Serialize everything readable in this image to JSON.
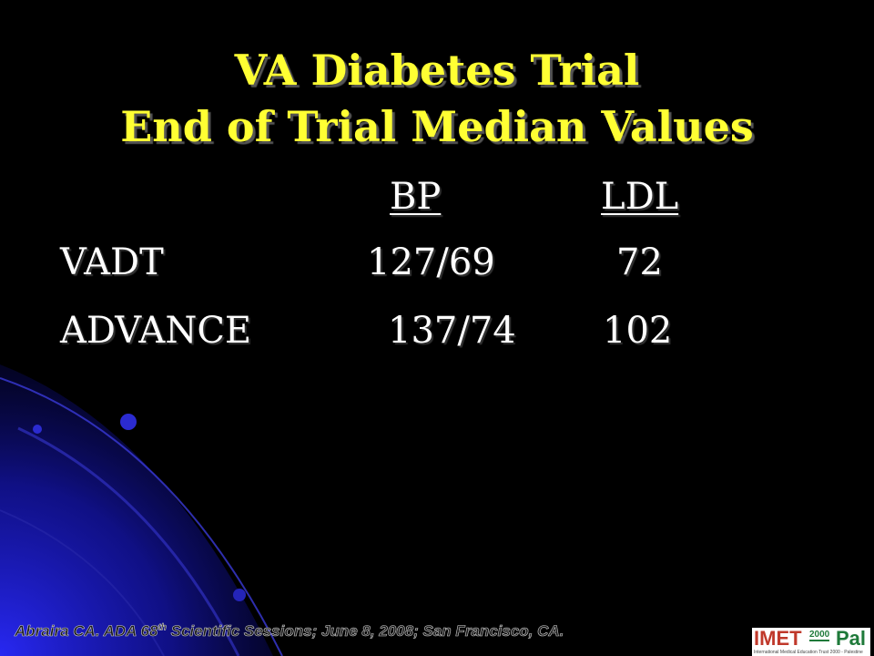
{
  "slide": {
    "title_line1": "VA Diabetes Trial",
    "title_line2": "End of Trial Median Values",
    "table": {
      "headers": [
        "BP",
        "LDL"
      ],
      "rows": [
        {
          "label": "VADT",
          "bp": "127/69",
          "ldl": "72"
        },
        {
          "label": "ADVANCE",
          "bp": "137/74",
          "ldl": "102"
        }
      ]
    },
    "footer": {
      "citation_pre": "Abraira CA. ADA 68",
      "citation_sup": "th",
      "citation_post": " Scientific Sessions; June 8, 2008; San Francisco, CA."
    },
    "logo": {
      "left": "IMET",
      "year": "2000",
      "right": "Pal",
      "tagline": "International Medical Education Trust 2000 - Palestine"
    }
  },
  "colors": {
    "background": "#000000",
    "title": "#ffff33",
    "text": "#ffffff",
    "swirl": "#1a1aa8"
  }
}
